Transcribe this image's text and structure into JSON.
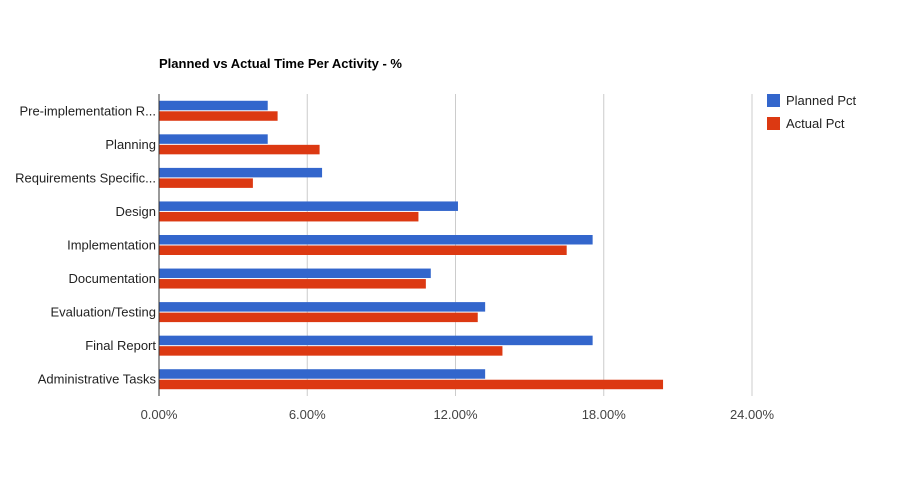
{
  "chart_data": {
    "type": "bar",
    "orientation": "horizontal",
    "title": "Planned vs Actual Time Per Activity - %",
    "xlabel": "",
    "ylabel": "",
    "categories": [
      "Pre-implementation R...",
      "Planning",
      "Requirements Specific...",
      "Design",
      "Implementation",
      "Documentation",
      "Evaluation/Testing",
      "Final Report",
      "Administrative Tasks"
    ],
    "series": [
      {
        "name": "Planned Pct",
        "color": "#3366cc",
        "values": [
          4.4,
          4.4,
          6.6,
          12.1,
          17.55,
          11.0,
          13.2,
          17.55,
          13.2
        ]
      },
      {
        "name": "Actual Pct",
        "color": "#dc3912",
        "values": [
          4.8,
          6.5,
          3.8,
          10.5,
          16.5,
          10.8,
          12.9,
          13.9,
          20.4
        ]
      }
    ],
    "xlim": [
      0,
      24
    ],
    "ticks": [
      0,
      6,
      12,
      18,
      24
    ],
    "tick_labels": [
      "0.00%",
      "6.00%",
      "12.00%",
      "18.00%",
      "24.00%"
    ],
    "grid": true,
    "legend_position": "right"
  }
}
